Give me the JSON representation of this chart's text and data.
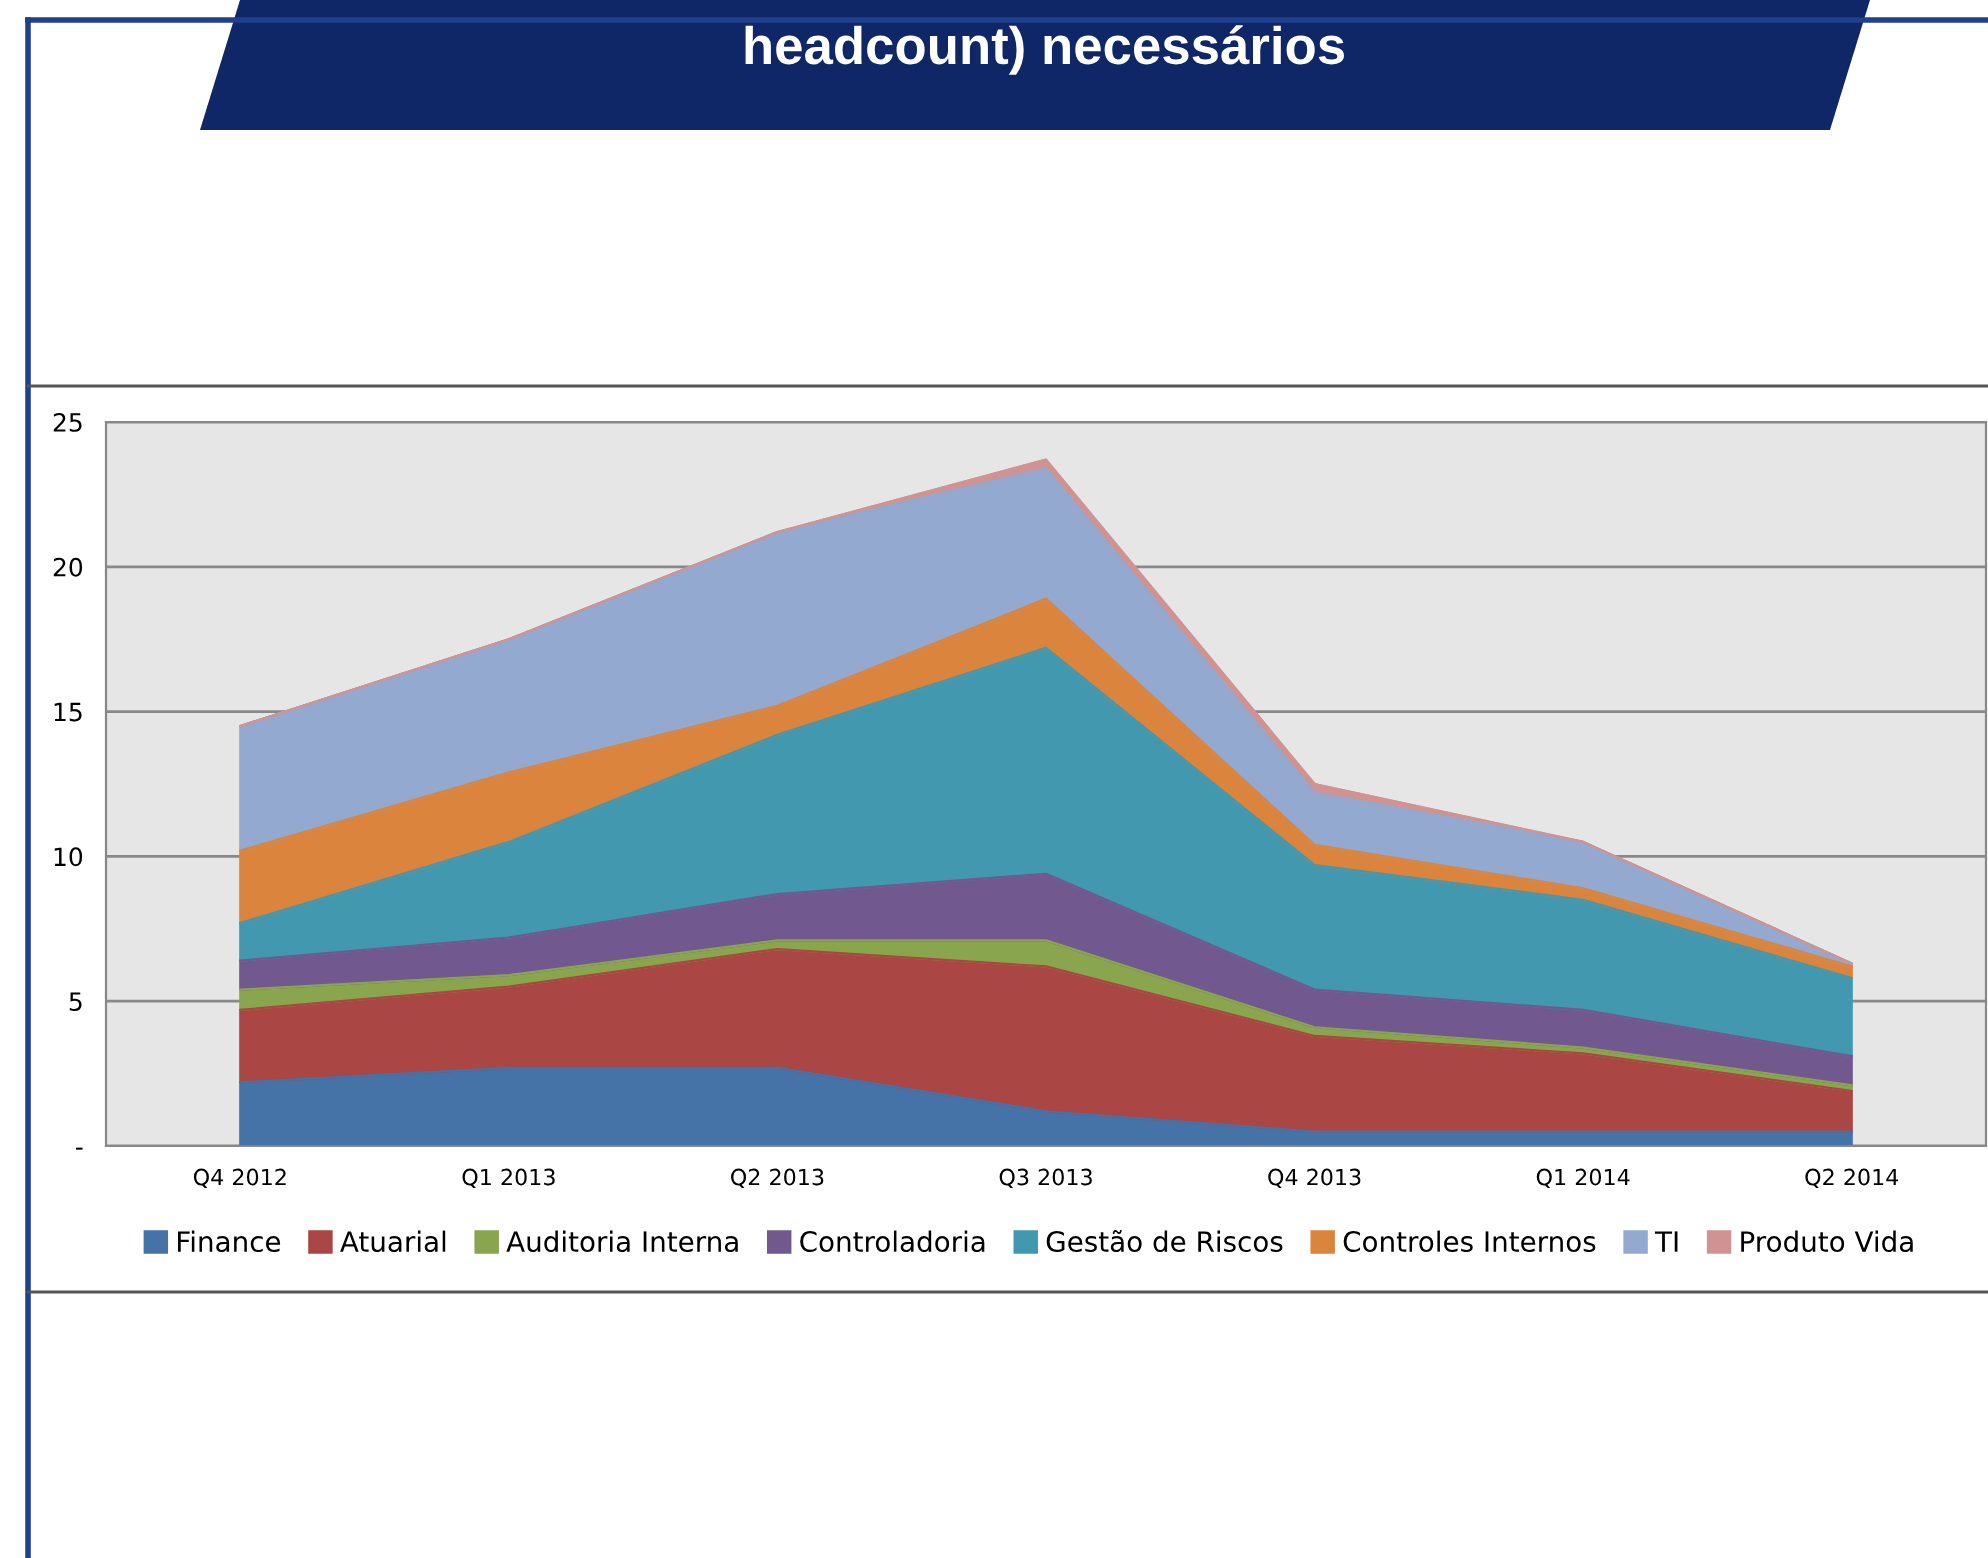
{
  "chart_data": {
    "type": "area",
    "stacked": true,
    "title": "headcount) necessários",
    "categories": [
      "Q4 2012",
      "Q1 2013",
      "Q2 2013",
      "Q3 2013",
      "Q4 2013",
      "Q1 2014",
      "Q2 2014"
    ],
    "series": [
      {
        "name": "Finance",
        "color": "#4572a7",
        "values": [
          2.2,
          2.7,
          2.7,
          1.2,
          0.5,
          0.5,
          0.5
        ]
      },
      {
        "name": "Atuarial",
        "color": "#aa4643",
        "values": [
          2.5,
          2.8,
          4.1,
          5.0,
          3.3,
          2.7,
          1.4
        ]
      },
      {
        "name": "Auditoria Interna",
        "color": "#89a54e",
        "values": [
          0.7,
          0.4,
          0.3,
          0.9,
          0.3,
          0.2,
          0.2
        ]
      },
      {
        "name": "Controladoria",
        "color": "#71588f",
        "values": [
          1.0,
          1.3,
          1.6,
          2.3,
          1.3,
          1.3,
          1.0
        ]
      },
      {
        "name": "Gestão de Riscos",
        "color": "#4198af",
        "values": [
          1.3,
          3.3,
          5.5,
          7.8,
          4.3,
          3.8,
          2.7
        ]
      },
      {
        "name": "Controles Internos",
        "color": "#db843d",
        "values": [
          2.5,
          2.4,
          1.0,
          1.7,
          0.7,
          0.4,
          0.4
        ]
      },
      {
        "name": "TI",
        "color": "#93a9cf",
        "values": [
          4.3,
          4.6,
          6.0,
          4.5,
          1.8,
          1.6,
          0.1
        ]
      },
      {
        "name": "Produto Vida",
        "color": "#d19392",
        "values": [
          0,
          0,
          0,
          0.3,
          0.3,
          0,
          0
        ]
      }
    ],
    "ylim": [
      0,
      25
    ],
    "yticks": [
      {
        "value": 0,
        "label": "-"
      },
      5,
      10,
      15,
      20,
      25
    ],
    "grid": "y",
    "legend": "bottom"
  }
}
